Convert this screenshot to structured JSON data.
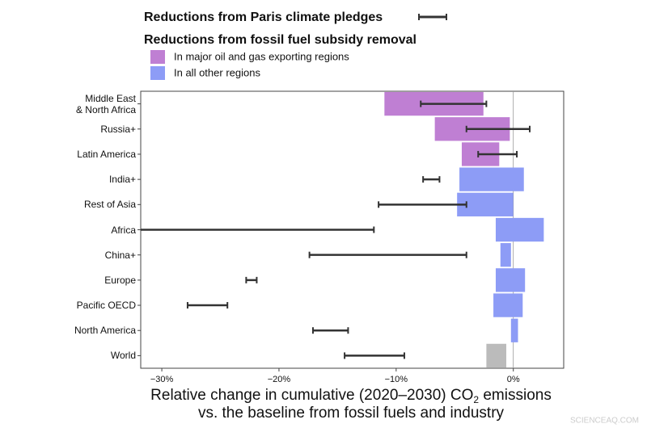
{
  "chart_data": {
    "type": "range-bar",
    "categories": [
      "Middle East\n& North Africa",
      "Russia+",
      "Latin America",
      "India+",
      "Rest of Asia",
      "Africa",
      "China+",
      "Europe",
      "Pacific OECD",
      "North America",
      "World"
    ],
    "pledges": {
      "name": "Reductions from Paris climate pledges",
      "color": "#333333",
      "low": [
        -7.9,
        -4.0,
        -3.0,
        -7.7,
        -11.5,
        -31.8,
        -17.4,
        -22.8,
        -27.8,
        -17.1,
        -14.4
      ],
      "high": [
        -2.3,
        1.4,
        0.3,
        -6.3,
        -4.0,
        -11.9,
        -4.0,
        -21.9,
        -24.4,
        -14.1,
        -9.3
      ]
    },
    "subsidy": {
      "name": "Reductions from fossil fuel subsidy removal",
      "legend": [
        {
          "name": "In major oil and gas exporting regions",
          "color": "#bf7fd3"
        },
        {
          "name": "In all other regions",
          "color": "#8d9cf6"
        }
      ],
      "low": [
        -11.0,
        -6.7,
        -4.4,
        -4.6,
        -4.8,
        -1.5,
        -1.1,
        -1.5,
        -1.7,
        -0.2,
        -2.3
      ],
      "high": [
        -2.55,
        -0.3,
        -1.2,
        0.9,
        0.0,
        2.6,
        -0.2,
        1.0,
        0.8,
        0.4,
        -0.6
      ],
      "colors": [
        "#bf7fd3",
        "#bf7fd3",
        "#bf7fd3",
        "#8d9cf6",
        "#8d9cf6",
        "#8d9cf6",
        "#8d9cf6",
        "#8d9cf6",
        "#8d9cf6",
        "#8d9cf6",
        "#bbbbbb"
      ]
    },
    "xlim": [
      -31.8,
      4.3
    ],
    "xticks": [
      {
        "value": -30,
        "label": "−30%"
      },
      {
        "value": -20,
        "label": "−20%"
      },
      {
        "value": -10,
        "label": "−10%"
      },
      {
        "value": 0,
        "label": "0%"
      }
    ],
    "x_label": {
      "line1": "Relative change in cumulative (2020–2030) CO",
      "sub": "2",
      "line1_end": " emissions",
      "line2": "vs. the baseline from fossil fuels and industry"
    },
    "watermark": "SCIENCEAQ.COM"
  }
}
